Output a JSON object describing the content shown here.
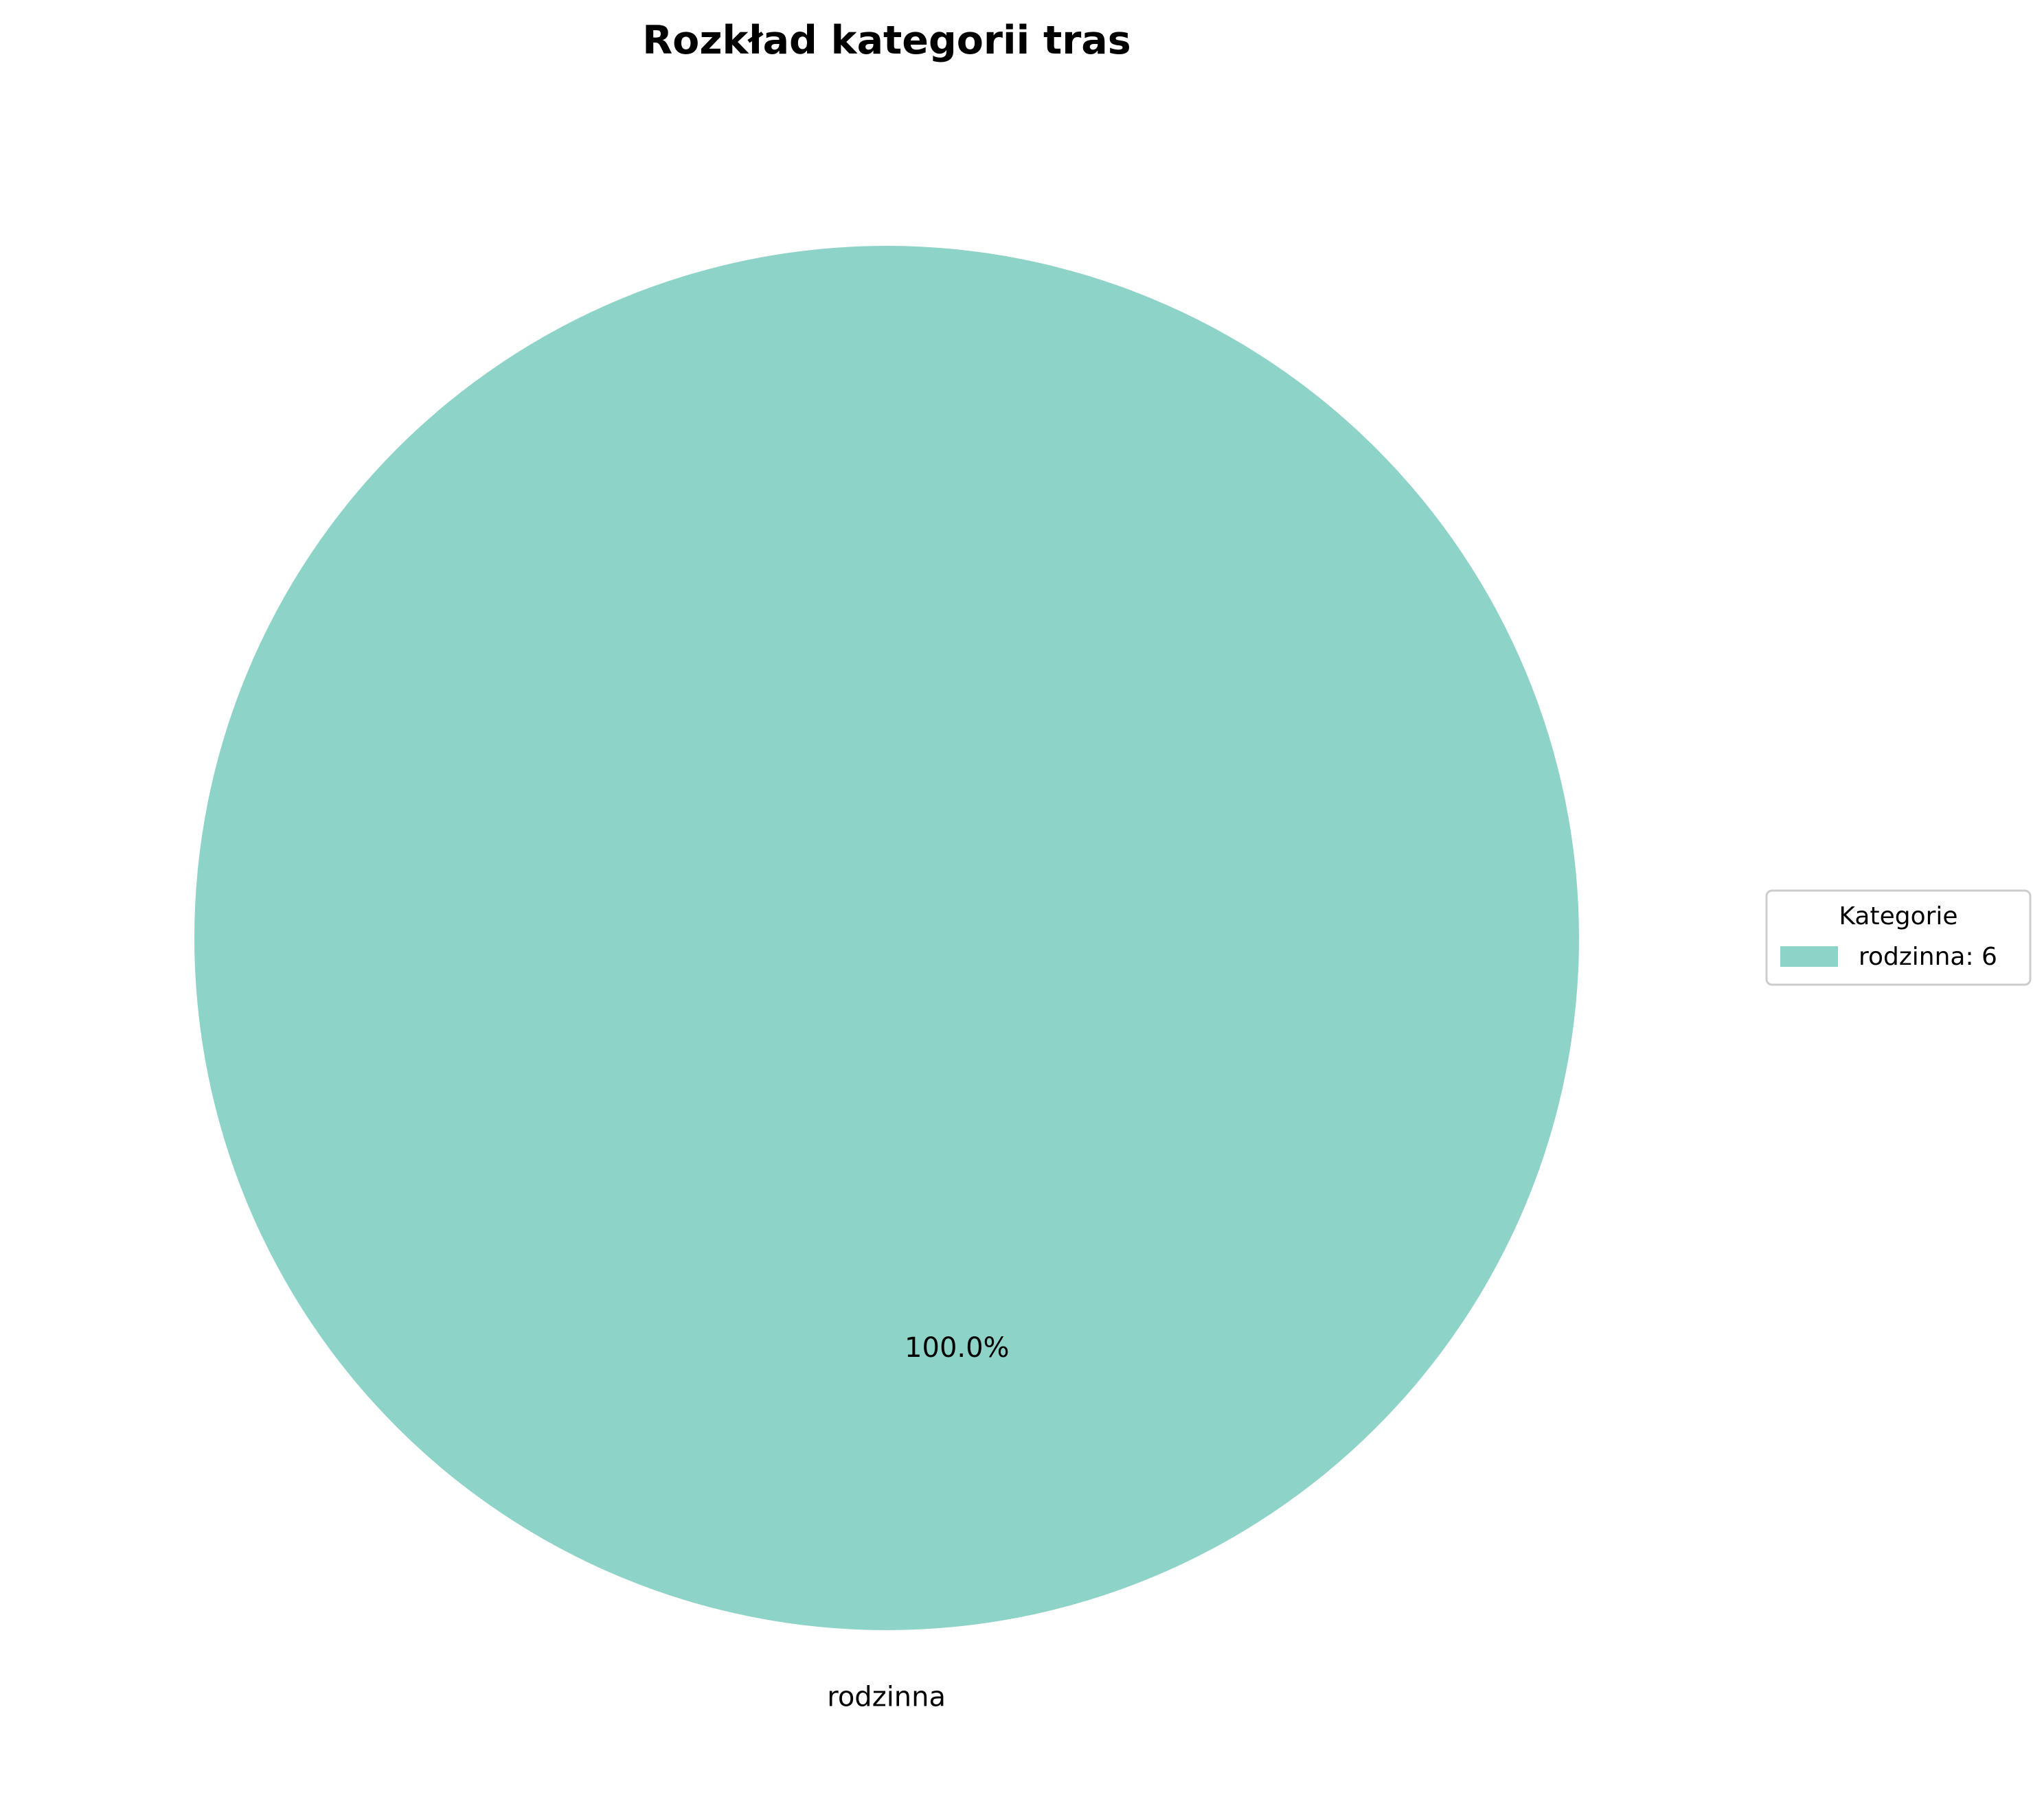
{
  "chart_data": {
    "type": "pie",
    "title": "Rozkład kategorii tras",
    "slices": [
      {
        "label": "rodzinna",
        "value": 6,
        "percent_label": "100.0%",
        "legend_label": "rodzinna: 6",
        "color": "#8ed3c7"
      }
    ],
    "legend": {
      "title": "Kategorie",
      "placement": "right"
    }
  }
}
